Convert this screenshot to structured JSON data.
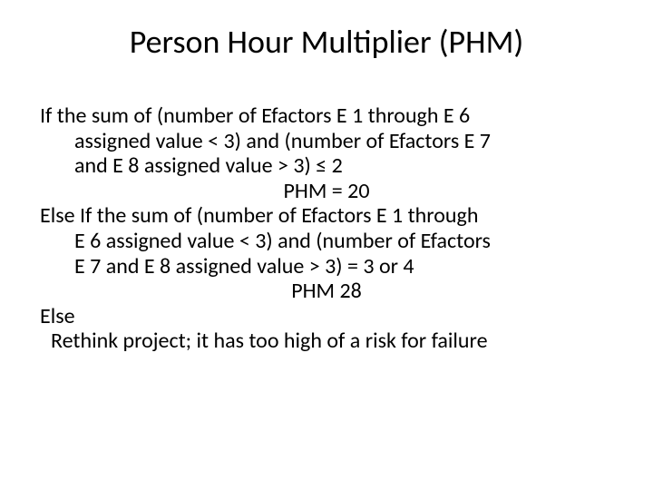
{
  "slide": {
    "title": "Person Hour Multiplier (PHM)",
    "lines": {
      "l1": "If the sum of (number of Efactors E 1 through E 6",
      "l2": "assigned value < 3) and (number of Efactors E 7",
      "l3": "and E 8 assigned value > 3) ≤ 2",
      "l4": "PHM = 20",
      "l5": "Else If the sum of (number of Efactors E 1 through",
      "l6": "E 6 assigned value < 3) and  (number of Efactors",
      "l7": "E 7 and E 8 assigned value > 3) = 3 or 4",
      "l8": "PHM  28",
      "l9": "Else",
      "l10": "Rethink project; it has too high of a risk for failure"
    }
  },
  "style": {
    "title_fontsize": 36,
    "body_fontsize": 24,
    "text_color": "#000000",
    "background_color": "#ffffff",
    "font_family": "Calibri"
  }
}
